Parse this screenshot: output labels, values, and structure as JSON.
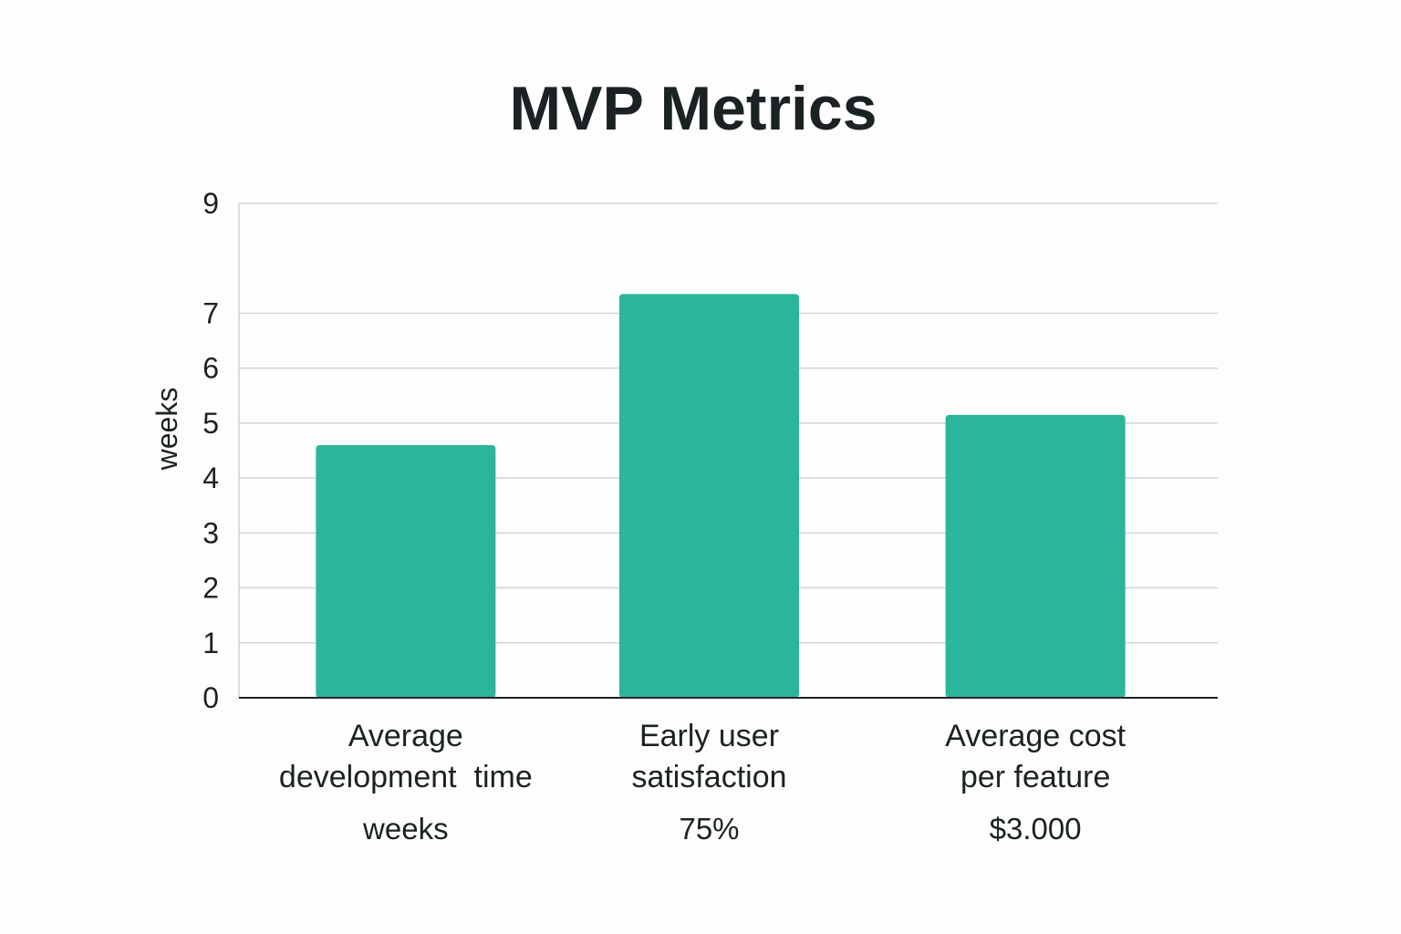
{
  "chart_data": {
    "type": "bar",
    "title": "MVP Metrics",
    "ylabel": "weeks",
    "xlabel": "",
    "ylim": [
      0,
      9
    ],
    "yticks": [
      {
        "value": 0,
        "label": "0"
      },
      {
        "value": 1,
        "label": "1"
      },
      {
        "value": 2,
        "label": "2"
      },
      {
        "value": 3,
        "label": "3"
      },
      {
        "value": 4,
        "label": "4"
      },
      {
        "value": 5,
        "label": "5"
      },
      {
        "value": 6,
        "label": "6"
      },
      {
        "value": 7,
        "label": "7"
      },
      {
        "value": 9,
        "label": "9"
      }
    ],
    "categories": [
      {
        "lines": [
          "Average",
          "development  time"
        ],
        "value_label": "weeks"
      },
      {
        "lines": [
          "Early user",
          "satisfaction"
        ],
        "value_label": "75%"
      },
      {
        "lines": [
          "Average cost",
          "per feature"
        ],
        "value_label": "$3.000"
      }
    ],
    "values": [
      4.6,
      7.35,
      5.15
    ],
    "grid": true,
    "colors": {
      "bar": "#2bb59a",
      "grid": "#cfd3d4",
      "axis": "#1b2224",
      "text": "#1b2224"
    }
  }
}
